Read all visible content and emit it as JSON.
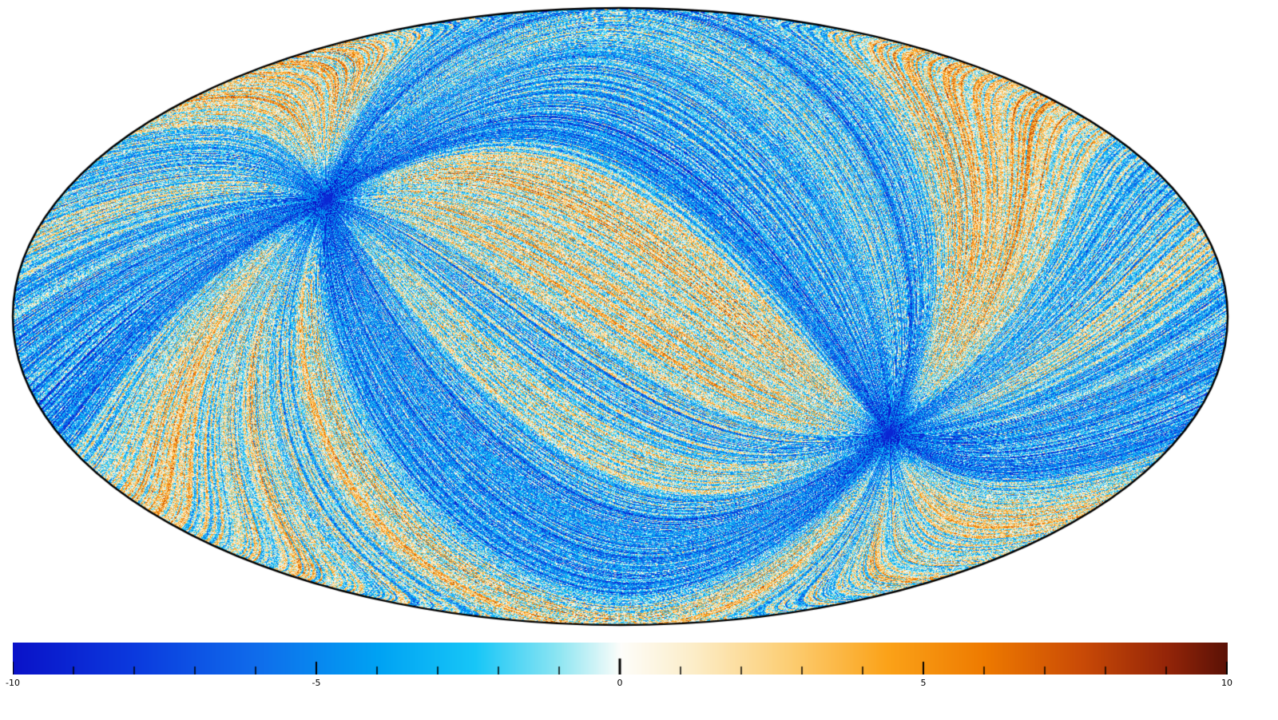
{
  "chart_data": {
    "type": "heatmap",
    "projection": "mollweide",
    "title": "",
    "description": "All-sky Mollweide map of a noisy scalar field with filamentary streaks converging at two antipodal points, shown with a diverging blue-white-orange colormap",
    "background": "#ffffff",
    "outline_color": "#000000",
    "colorbar": {
      "min": -10,
      "max": 10,
      "major_ticks": [
        -10,
        -5,
        0,
        5,
        10
      ],
      "minor_tick_step": 1,
      "tick_color": "#000000",
      "colormap_stops": [
        {
          "pos": 0.0,
          "color": "#0a12c8"
        },
        {
          "pos": 0.1,
          "color": "#0b3ade"
        },
        {
          "pos": 0.2,
          "color": "#0f6ceb"
        },
        {
          "pos": 0.3,
          "color": "#00a2f3"
        },
        {
          "pos": 0.38,
          "color": "#17c6f7"
        },
        {
          "pos": 0.45,
          "color": "#90e6f2"
        },
        {
          "pos": 0.5,
          "color": "#fdfdfa"
        },
        {
          "pos": 0.56,
          "color": "#fcedc8"
        },
        {
          "pos": 0.64,
          "color": "#fccd72"
        },
        {
          "pos": 0.72,
          "color": "#fba218"
        },
        {
          "pos": 0.8,
          "color": "#ee7a00"
        },
        {
          "pos": 0.88,
          "color": "#c94a06"
        },
        {
          "pos": 0.95,
          "color": "#942508"
        },
        {
          "pos": 1.0,
          "color": "#5a1106"
        }
      ]
    },
    "convergence_points": [
      {
        "lon_deg": -94,
        "lat_deg": 28
      },
      {
        "lon_deg": 86,
        "lat_deg": -28
      }
    ],
    "texture": {
      "streak_count": 1500,
      "value_bias": -1.3,
      "sector_amplitude": 2.2,
      "streak_amplitude": 0.38,
      "dash_amplitude": 6.5,
      "pixel_noise_amplitude": 3.0
    }
  }
}
